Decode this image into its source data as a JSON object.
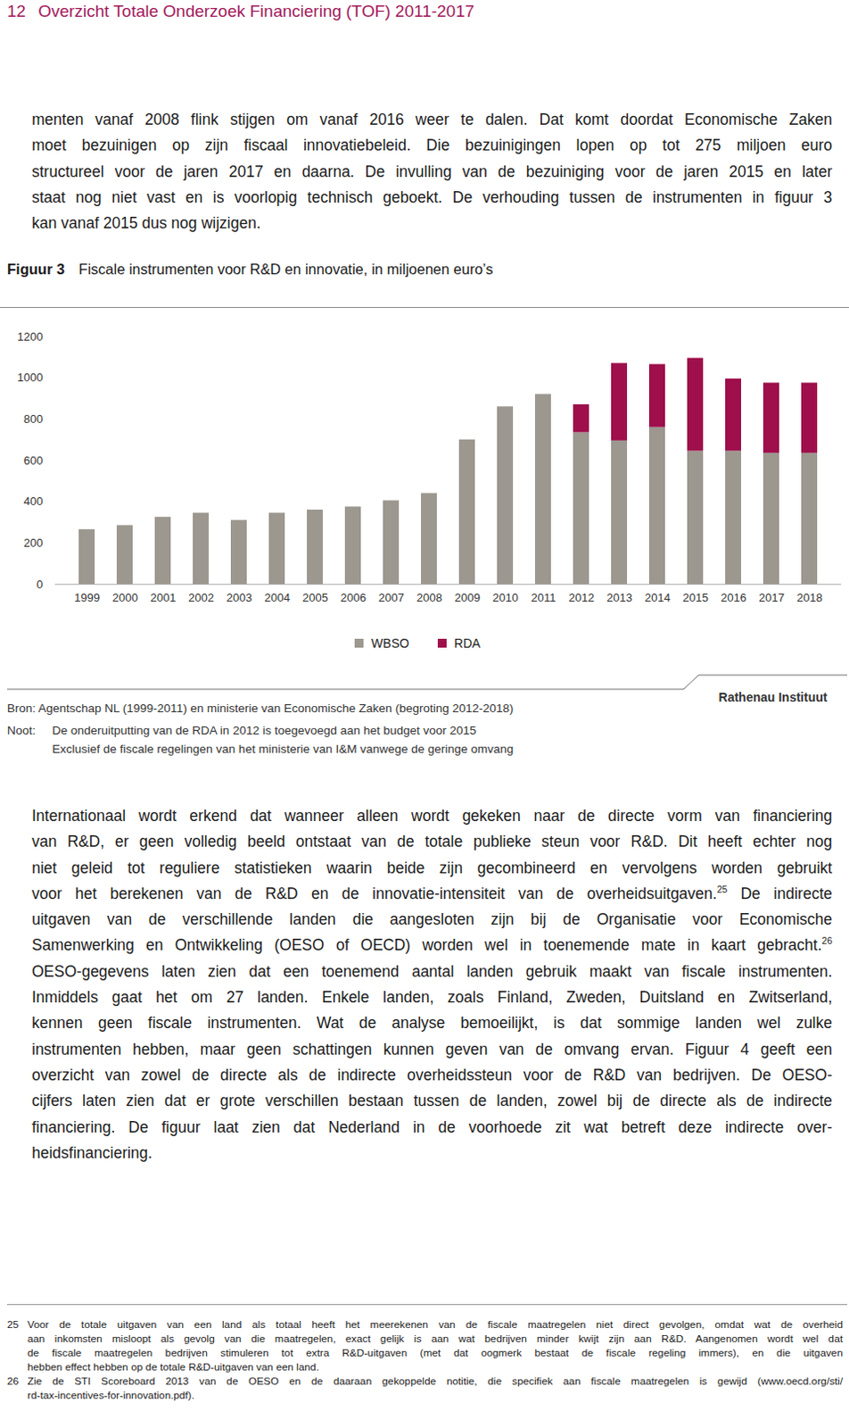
{
  "header": {
    "page_number": "12",
    "running_title": "Overzicht Totale Onderzoek Financiering (TOF) 2011-2017"
  },
  "intro": {
    "lines": [
      "menten vanaf 2008 flink stijgen om vanaf 2016 weer te dalen. Dat komt doordat Economische Zaken",
      "moet bezuinigen op zijn fiscaal innovatiebeleid. Die bezuinigingen lopen op tot 275 miljoen euro",
      "structureel voor de jaren 2017 en daarna. De invulling van de bezuiniging voor de jaren 2015 en later",
      "staat nog niet vast en is voorlopig technisch geboekt. De verhouding tussen de instrumenten in figuur 3",
      "kan vanaf 2015 dus nog wijzigen."
    ]
  },
  "figure": {
    "label": "Figuur 3",
    "source": "Bron: Agentschap NL (1999-2011) en ministerie van Economische Zaken (begroting 2012-2018)",
    "notes_label": "Noot:",
    "notes": [
      "De onderuitputting van de RDA in 2012 is toegevoegd aan het budget voor 2015",
      "Exclusief de fiscale regelingen van het ministerie van I&M vanwege de geringe omvang"
    ],
    "credit": "Rathenau Instituut"
  },
  "chart_data": {
    "type": "bar",
    "title": "Fiscale instrumenten voor R&D en innovatie, in miljoenen euro’s",
    "stacked": true,
    "categories": [
      "1999",
      "2000",
      "2001",
      "2002",
      "2003",
      "2004",
      "2005",
      "2006",
      "2007",
      "2008",
      "2009",
      "2010",
      "2011",
      "2012",
      "2013",
      "2014",
      "2015",
      "2016",
      "2017",
      "2018"
    ],
    "series": [
      {
        "name": "WBSO",
        "color": "#9c978f",
        "values": [
          265,
          285,
          325,
          345,
          310,
          345,
          360,
          375,
          405,
          440,
          700,
          860,
          920,
          735,
          695,
          760,
          645,
          645,
          635,
          635
        ]
      },
      {
        "name": "RDA",
        "color": "#9e0f4b",
        "values": [
          null,
          null,
          null,
          null,
          null,
          null,
          null,
          null,
          null,
          null,
          null,
          null,
          null,
          135,
          375,
          305,
          450,
          350,
          340,
          340
        ]
      }
    ],
    "ylim": [
      0,
      1200
    ],
    "yticks": [
      0,
      200,
      400,
      600,
      800,
      1000,
      1200
    ],
    "grid": false,
    "legend": "bottom"
  },
  "body": {
    "lines": [
      [
        "Internationaal wordt erkend dat wanneer alleen wordt gekeken naar de directe vorm van financiering"
      ],
      [
        "van R&D, er geen volledig beeld ontstaat van de totale publieke steun voor R&D. Dit heeft echter nog"
      ],
      [
        "niet geleid tot reguliere statistieken waarin beide zijn gecombineerd en vervolgens worden gebruikt"
      ],
      [
        "voor het berekenen van de R&D en de innovatie-intensiteit van de overheidsuitgaven.",
        {
          "sup": "25"
        },
        " De indirecte"
      ],
      [
        "uitgaven van de verschillende landen die aangesloten zijn bij de Organisatie voor Economische"
      ],
      [
        "Samenwerking en Ontwikkeling (OESO of OECD) worden wel in toenemende mate in kaart gebracht.",
        {
          "sup": "26"
        }
      ],
      [
        "OESO-gegevens laten zien dat een toenemend aantal landen gebruik maakt van fiscale instrumenten."
      ],
      [
        "Inmiddels gaat het om 27 landen. Enkele landen, zoals Finland, Zweden, Duitsland en Zwitserland,"
      ],
      [
        "kennen geen fiscale instrumenten. Wat de analyse bemoeilijkt, is dat sommige landen wel zulke"
      ],
      [
        "instrumenten hebben, maar geen schattingen kunnen geven van de omvang ervan. Figuur 4 geeft een"
      ],
      [
        "overzicht van zowel de directe als de indirecte overheidssteun voor de R&D van bedrijven. De OESO-"
      ],
      [
        "cijfers laten zien dat er grote verschillen bestaan tussen de landen, zowel bij de directe als de indirecte"
      ],
      [
        "financiering. De figuur laat zien dat Nederland in de voorhoede zit wat betreft deze indirecte over-"
      ],
      [
        "heidsfinanciering."
      ]
    ]
  },
  "footnotes": [
    {
      "number": "25",
      "lines": [
        "Voor de totale uitgaven van een land als totaal heeft het meerekenen van de fiscale maatregelen niet direct gevolgen, omdat wat de overheid",
        "aan inkomsten misloopt als gevolg van die maatregelen, exact gelijk is aan wat bedrijven minder kwijt zijn aan R&D. Aangenomen wordt wel dat",
        "de fiscale maatregelen bedrijven stimuleren tot extra R&D-uitgaven (met dat oogmerk bestaat de fiscale regeling immers), en die uitgaven",
        "hebben effect hebben op de totale R&D-uitgaven van een land."
      ]
    },
    {
      "number": "26",
      "lines": [
        "Zie de STI Scoreboard 2013 van de OESO en de daaraan gekoppelde notitie, die specifiek aan fiscale maatregelen is gewijd (www.oecd.org/sti/",
        "rd-tax-incentives-for-innovation.pdf)."
      ]
    }
  ]
}
